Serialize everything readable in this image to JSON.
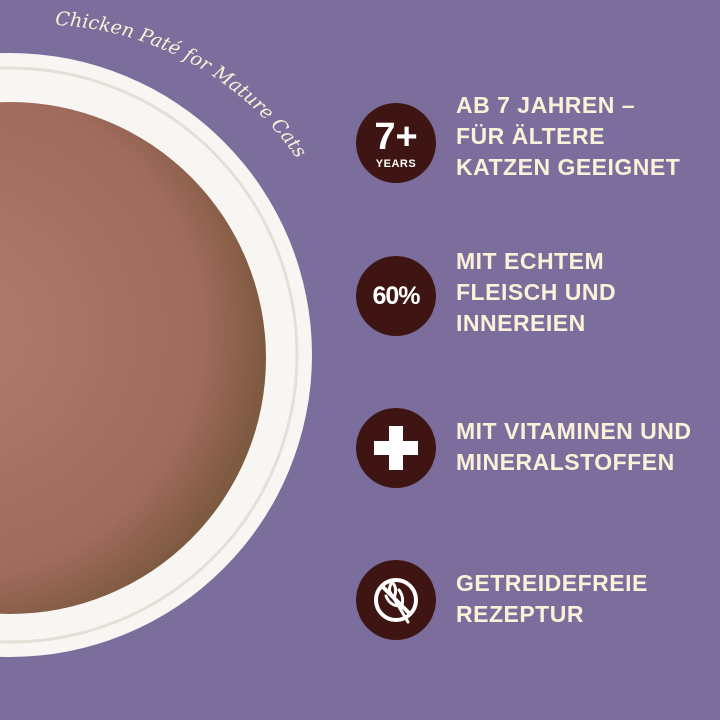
{
  "product_title": "Chicken Paté for Mature Cats",
  "colors": {
    "background": "#7b6e9c",
    "badge": "#3e1512",
    "text": "#fbf1d9",
    "bowl": "#f7f6f2",
    "food": "#a46d62"
  },
  "features": [
    {
      "icon": "age-7-plus-badge",
      "badge_main": "7+",
      "badge_sub": "YEARS",
      "text": "AB 7 JAHREN –\nFÜR ÄLTERE\nKATZEN GEEIGNET"
    },
    {
      "icon": "percent-badge",
      "badge_main": "60%",
      "text": "MIT ECHTEM\nFLEISCH UND\nINNEREIEN"
    },
    {
      "icon": "plus-icon",
      "text": "MIT VITAMINEN UND\nMINERALSTOFFEN"
    },
    {
      "icon": "grain-free-icon",
      "text": "GETREIDEFREIE\nREZEPTUR"
    }
  ]
}
